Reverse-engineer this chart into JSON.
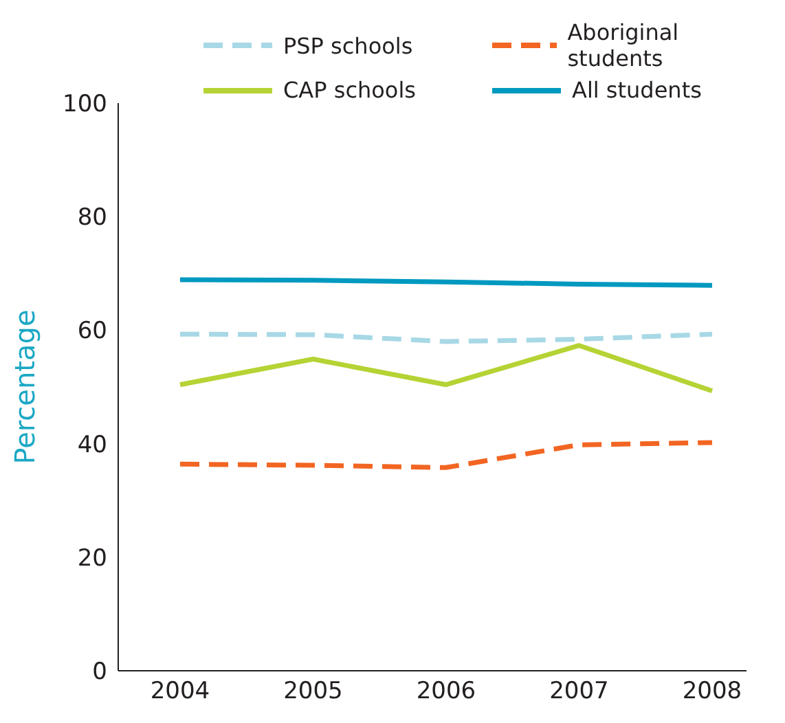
{
  "chart_data": {
    "type": "line",
    "ylabel": "Percentage",
    "categories": [
      "2004",
      "2005",
      "2006",
      "2007",
      "2008"
    ],
    "series": [
      {
        "name": "PSP schools",
        "color": "#a8d8e6",
        "line_style": "dashed",
        "values": [
          59.3,
          59.2,
          58.0,
          58.4,
          59.3
        ]
      },
      {
        "name": "Aboriginal students",
        "color": "#f26522",
        "line_style": "dashed",
        "values": [
          36.4,
          36.2,
          35.8,
          39.8,
          40.2
        ]
      },
      {
        "name": "CAP schools",
        "color": "#b5d334",
        "line_style": "solid",
        "values": [
          50.4,
          54.9,
          50.4,
          57.3,
          49.3
        ]
      },
      {
        "name": "All students",
        "color": "#0099c0",
        "line_style": "solid",
        "values": [
          68.9,
          68.8,
          68.5,
          68.1,
          67.9
        ]
      }
    ],
    "ylim": [
      0,
      100
    ],
    "yticks": [
      0,
      20,
      40,
      60,
      80,
      100
    ],
    "grid": false,
    "legend": "top",
    "marker": "none"
  }
}
